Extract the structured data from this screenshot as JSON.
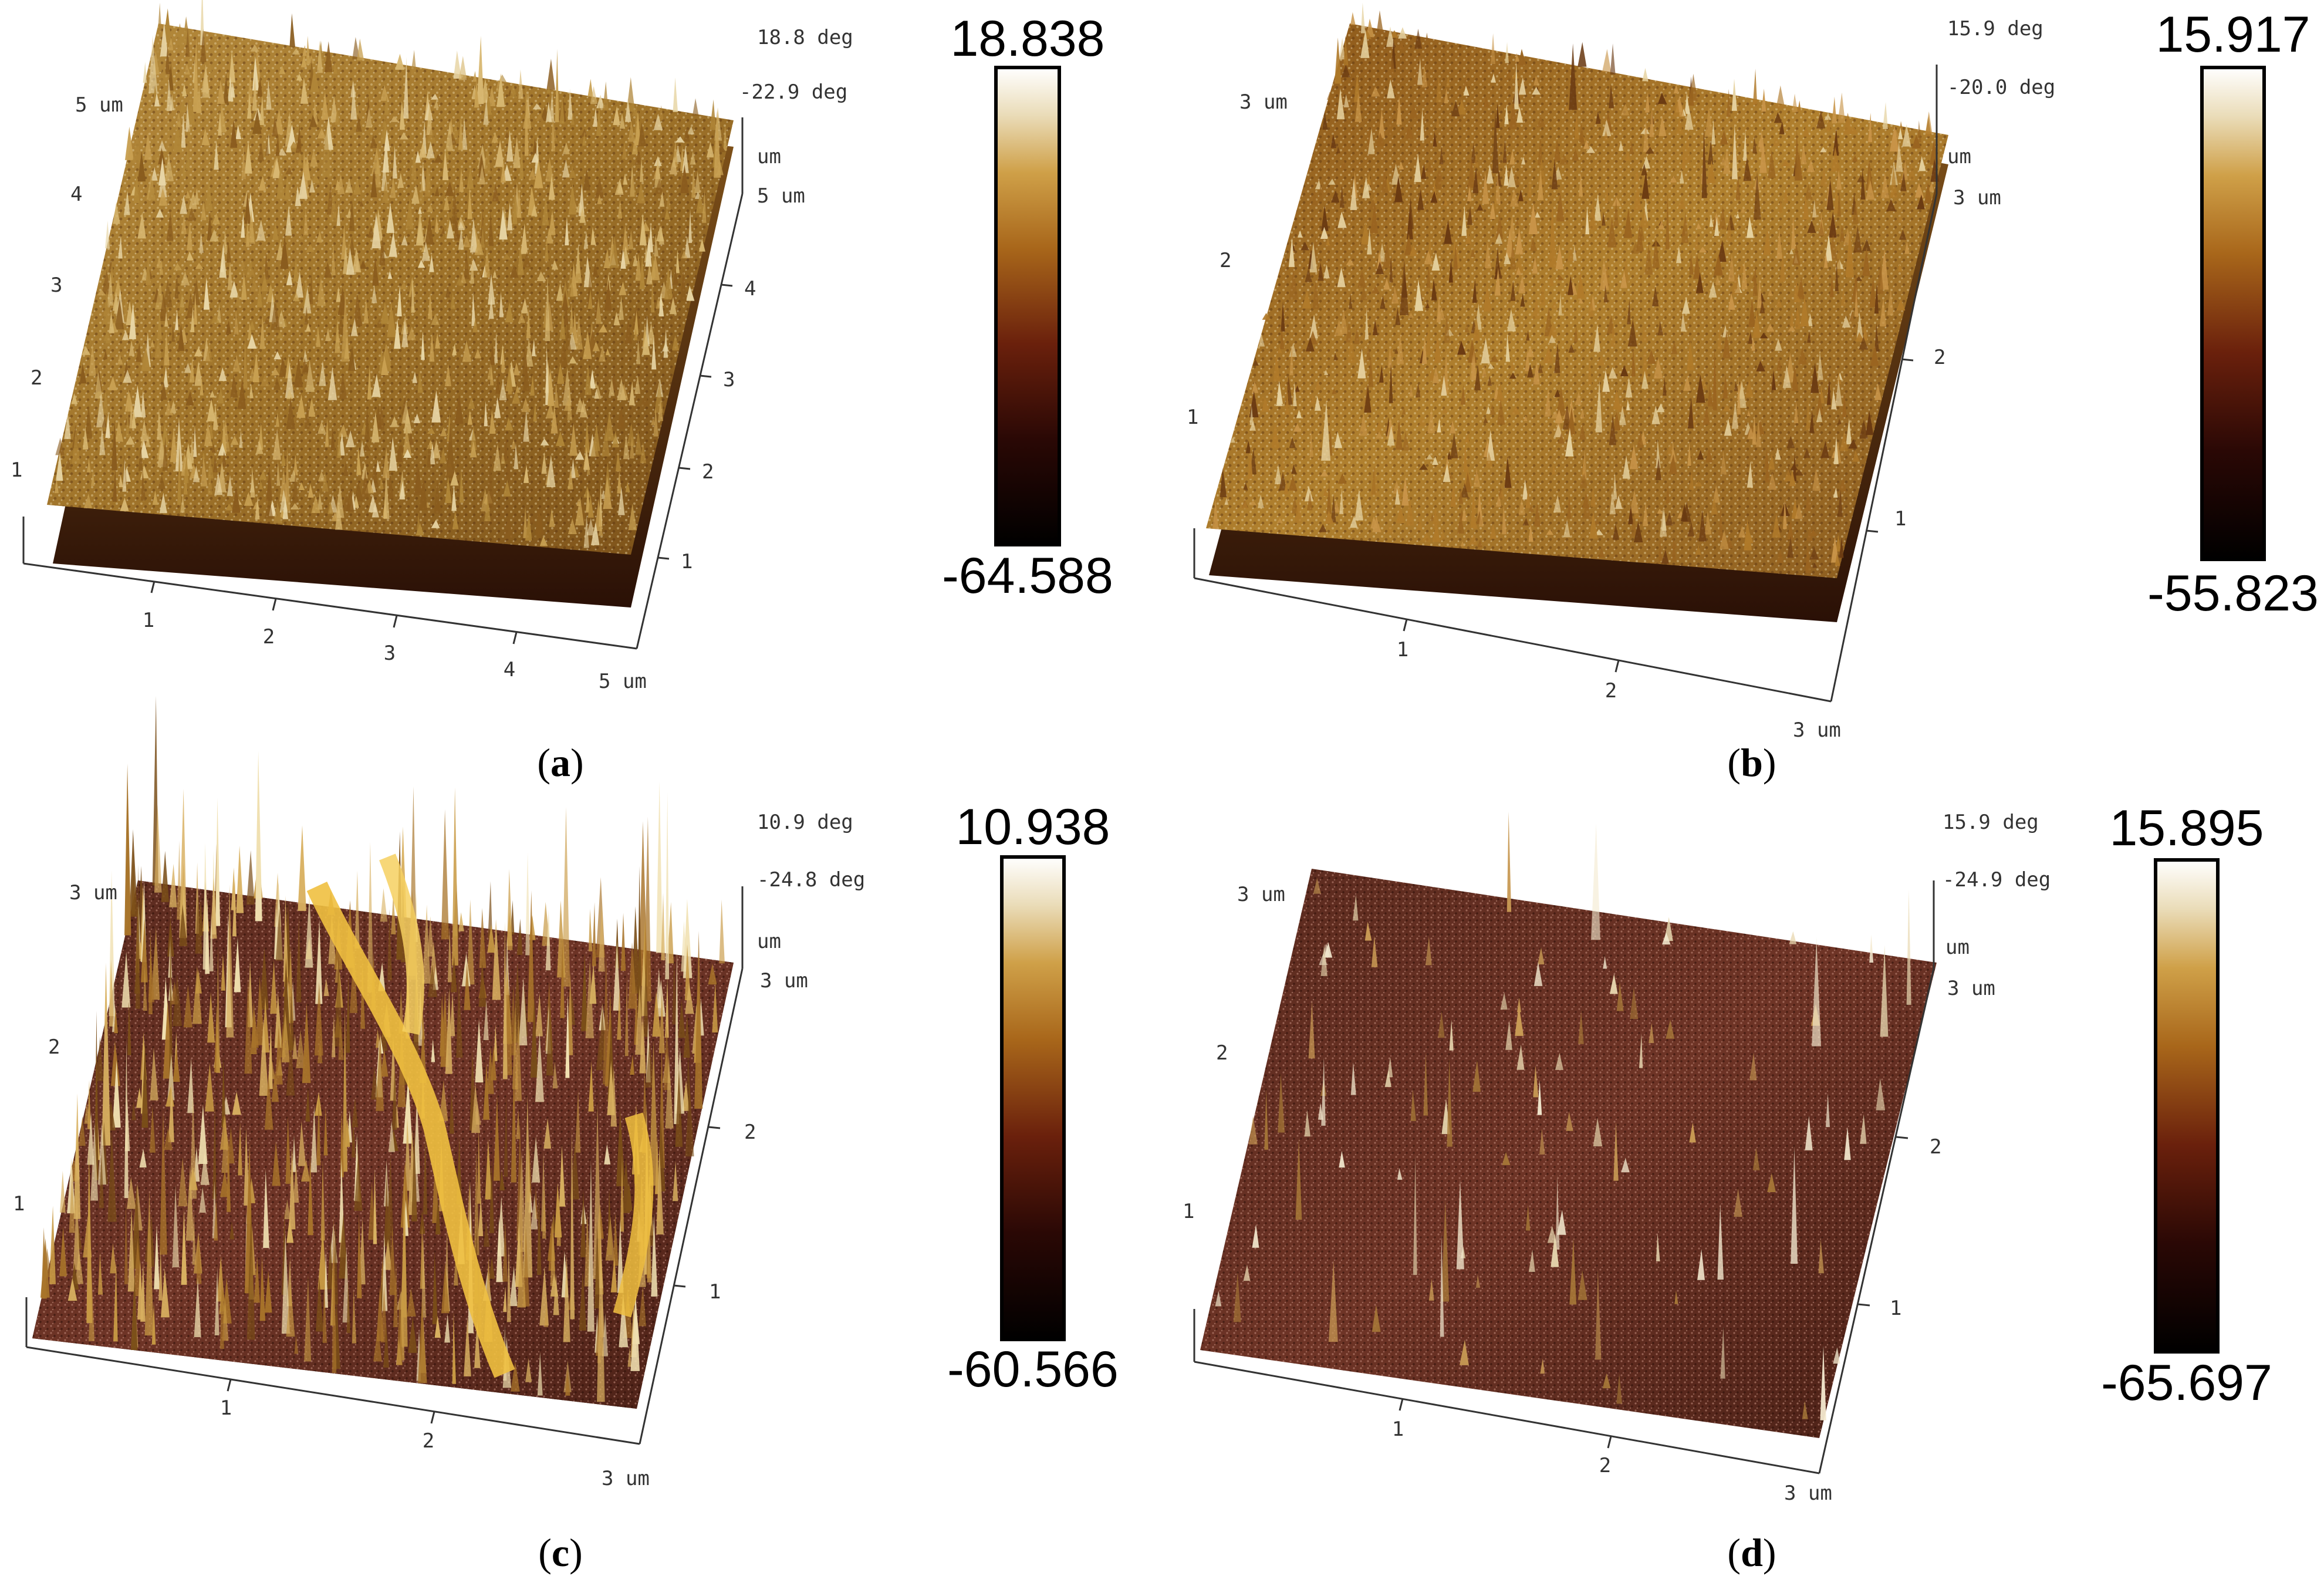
{
  "figure": {
    "panels": [
      {
        "id": "a",
        "caption": "(a)",
        "caption_letter": "a",
        "deg_max": "18.8 deg",
        "deg_min": "-22.9 deg",
        "z_unit": "um",
        "x_axis": {
          "ticks": [
            "1",
            "2",
            "3",
            "4"
          ],
          "end_label": "5 um"
        },
        "y_axis": {
          "ticks": [
            "1",
            "2",
            "3",
            "4"
          ],
          "end_label": "5 um"
        },
        "left_axis": {
          "ticks": [
            "1",
            "2",
            "3",
            "4"
          ],
          "top_label": "5 um"
        },
        "colorbar": {
          "max": "18.838",
          "min": "-64.588"
        },
        "surface_style": "dense-golden"
      },
      {
        "id": "b",
        "caption": "(b)",
        "caption_letter": "b",
        "deg_max": "15.9 deg",
        "deg_min": "-20.0 deg",
        "z_unit": "um",
        "x_axis": {
          "ticks": [
            "1",
            "2"
          ],
          "end_label": "3 um"
        },
        "y_axis": {
          "ticks": [
            "1",
            "2"
          ],
          "end_label": "3 um"
        },
        "left_axis": {
          "ticks": [
            "1",
            "2"
          ],
          "top_label": "3 um"
        },
        "colorbar": {
          "max": "15.917",
          "min": "-55.823"
        },
        "surface_style": "golden-patchy"
      },
      {
        "id": "c",
        "caption": "(c)",
        "caption_letter": "c",
        "deg_max": "10.9 deg",
        "deg_min": "-24.8 deg",
        "z_unit": "um",
        "x_axis": {
          "ticks": [
            "1",
            "2"
          ],
          "end_label": "3 um"
        },
        "y_axis": {
          "ticks": [
            "1",
            "2"
          ],
          "end_label": "3 um"
        },
        "left_axis": {
          "ticks": [
            "1",
            "2"
          ],
          "top_label": "3 um"
        },
        "colorbar": {
          "max": "10.938",
          "min": "-60.566"
        },
        "surface_style": "fibrous-tall"
      },
      {
        "id": "d",
        "caption": "(d)",
        "caption_letter": "d",
        "deg_max": "15.9 deg",
        "deg_min": "-24.9 deg",
        "z_unit": "um",
        "x_axis": {
          "ticks": [
            "1",
            "2"
          ],
          "end_label": "3 um"
        },
        "y_axis": {
          "ticks": [
            "1",
            "2"
          ],
          "end_label": "3 um"
        },
        "left_axis": {
          "ticks": [
            "1",
            "2"
          ],
          "top_label": "3 um"
        },
        "colorbar": {
          "max": "15.895",
          "min": "-65.697"
        },
        "surface_style": "flat-spiky"
      }
    ],
    "colormap": [
      "#000000",
      "#2a0805",
      "#5e1a0c",
      "#9a5a12",
      "#c8951e",
      "#e6d2a4",
      "#ffffff"
    ]
  }
}
